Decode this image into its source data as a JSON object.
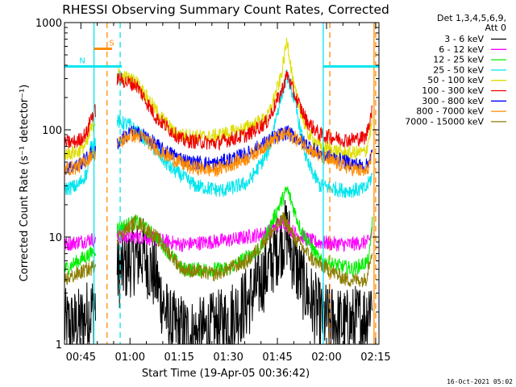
{
  "chart_data": {
    "type": "line",
    "title": "RHESSI Observing Summary Count Rates, Corrected",
    "ylabel": "Corrected Count Rate (s⁻¹ detector⁻¹)",
    "xlabel": "Start Time (19-Apr-05 00:36:42)",
    "footer": "16-Oct-2021 05:02",
    "legend_header": [
      "Det 1,3,4,5,6,9,",
      "Att 0"
    ],
    "legend_position": "right",
    "y_scale": "log",
    "ylim": [
      1,
      1000
    ],
    "y_ticks": [
      {
        "value": 1,
        "label": "1"
      },
      {
        "value": 10,
        "label": "10"
      },
      {
        "value": 100,
        "label": "100"
      },
      {
        "value": 1000,
        "label": "1000"
      }
    ],
    "x_start_minutes": 40,
    "xlim": [
      40,
      136
    ],
    "x_ticks": [
      {
        "value": 45,
        "label": "00:45"
      },
      {
        "value": 60,
        "label": "01:00"
      },
      {
        "value": 75,
        "label": "01:15"
      },
      {
        "value": 90,
        "label": "01:30"
      },
      {
        "value": 105,
        "label": "01:45"
      },
      {
        "value": 120,
        "label": "02:00"
      },
      {
        "value": 135,
        "label": "02:15"
      }
    ],
    "flags": [
      {
        "label": "S",
        "color": "#ff8c00",
        "start": 49,
        "end": 54.5,
        "level": 570
      },
      {
        "label": "N",
        "color": "#00e5ee",
        "start": 40,
        "end": 57.5,
        "level": 390
      },
      {
        "label": "",
        "color": "#00e5ee",
        "start": 119,
        "end": 136,
        "level": 390
      }
    ],
    "markers": [
      {
        "x": 49,
        "color": "#00e5ee",
        "style": "solid"
      },
      {
        "x": 53,
        "color": "#ff8c00",
        "style": "dash"
      },
      {
        "x": 57,
        "color": "#00e5ee",
        "style": "dash"
      },
      {
        "x": 119,
        "color": "#00e5ee",
        "style": "solid"
      },
      {
        "x": 121,
        "color": "#ff8c00",
        "style": "dash"
      },
      {
        "x": 134.5,
        "color": "#ff8c00",
        "style": "solid"
      },
      {
        "x": 135,
        "color": "#ff8c00",
        "style": "dash"
      }
    ],
    "gaps": [
      [
        49.5,
        56
      ]
    ],
    "noise": 0.07,
    "series": [
      {
        "name": "3 - 6 keV",
        "color": "#000000",
        "points": [
          [
            40,
            1.5
          ],
          [
            44,
            1.5
          ],
          [
            48,
            2.0
          ],
          [
            56,
            4.5
          ],
          [
            60,
            6
          ],
          [
            64,
            7
          ],
          [
            68,
            4
          ],
          [
            72,
            1.5
          ],
          [
            80,
            1.2
          ],
          [
            88,
            1.5
          ],
          [
            96,
            2.5
          ],
          [
            102,
            5
          ],
          [
            106,
            9
          ],
          [
            108,
            11
          ],
          [
            110,
            6
          ],
          [
            114,
            3
          ],
          [
            118,
            1.8
          ],
          [
            126,
            1.5
          ],
          [
            132,
            1.8
          ],
          [
            134,
            3
          ]
        ]
      },
      {
        "name": "6 - 12 keV",
        "color": "#ff00ff",
        "points": [
          [
            40,
            8.5
          ],
          [
            48,
            9.5
          ],
          [
            56,
            10
          ],
          [
            64,
            10
          ],
          [
            76,
            8.5
          ],
          [
            92,
            9.5
          ],
          [
            102,
            11
          ],
          [
            107,
            14
          ],
          [
            110,
            11
          ],
          [
            116,
            9
          ],
          [
            126,
            8.5
          ],
          [
            133,
            9
          ],
          [
            134,
            12
          ]
        ]
      },
      {
        "name": "12 - 25 keV",
        "color": "#00ee00",
        "points": [
          [
            40,
            5
          ],
          [
            48,
            7
          ],
          [
            56,
            12
          ],
          [
            62,
            14
          ],
          [
            68,
            10
          ],
          [
            76,
            5
          ],
          [
            90,
            5
          ],
          [
            100,
            8
          ],
          [
            105,
            18
          ],
          [
            108,
            28
          ],
          [
            112,
            12
          ],
          [
            118,
            6
          ],
          [
            128,
            5
          ],
          [
            133,
            6
          ],
          [
            134,
            15
          ]
        ]
      },
      {
        "name": "25 - 50 keV",
        "color": "#00e5ee",
        "points": [
          [
            40,
            28
          ],
          [
            44,
            30
          ],
          [
            47,
            40
          ],
          [
            48,
            70
          ],
          [
            56,
            120
          ],
          [
            60,
            110
          ],
          [
            66,
            75
          ],
          [
            72,
            45
          ],
          [
            80,
            30
          ],
          [
            88,
            27
          ],
          [
            96,
            32
          ],
          [
            102,
            60
          ],
          [
            106,
            200
          ],
          [
            108,
            320
          ],
          [
            110,
            200
          ],
          [
            114,
            50
          ],
          [
            118,
            30
          ],
          [
            126,
            27
          ],
          [
            132,
            28
          ],
          [
            134,
            38
          ]
        ]
      },
      {
        "name": "50 - 100 keV",
        "color": "#dede00",
        "points": [
          [
            40,
            60
          ],
          [
            44,
            62
          ],
          [
            47,
            75
          ],
          [
            48,
            100
          ],
          [
            56,
            330
          ],
          [
            62,
            280
          ],
          [
            68,
            150
          ],
          [
            74,
            90
          ],
          [
            84,
            85
          ],
          [
            94,
            100
          ],
          [
            102,
            130
          ],
          [
            106,
            300
          ],
          [
            108,
            700
          ],
          [
            110,
            250
          ],
          [
            114,
            95
          ],
          [
            118,
            70
          ],
          [
            126,
            60
          ],
          [
            132,
            62
          ],
          [
            134,
            120
          ]
        ]
      },
      {
        "name": "100 - 300 keV",
        "color": "#ee0000",
        "points": [
          [
            40,
            75
          ],
          [
            44,
            78
          ],
          [
            47,
            95
          ],
          [
            48,
            130
          ],
          [
            56,
            300
          ],
          [
            62,
            260
          ],
          [
            68,
            130
          ],
          [
            76,
            80
          ],
          [
            86,
            75
          ],
          [
            96,
            90
          ],
          [
            102,
            120
          ],
          [
            106,
            220
          ],
          [
            108,
            330
          ],
          [
            110,
            220
          ],
          [
            114,
            120
          ],
          [
            118,
            90
          ],
          [
            126,
            80
          ],
          [
            132,
            85
          ],
          [
            134,
            160
          ]
        ]
      },
      {
        "name": "300 - 800 keV",
        "color": "#0000ff",
        "points": [
          [
            40,
            44
          ],
          [
            44,
            46
          ],
          [
            47,
            55
          ],
          [
            48,
            60
          ],
          [
            56,
            75
          ],
          [
            60,
            95
          ],
          [
            64,
            90
          ],
          [
            70,
            65
          ],
          [
            78,
            50
          ],
          [
            86,
            48
          ],
          [
            96,
            60
          ],
          [
            104,
            85
          ],
          [
            108,
            95
          ],
          [
            112,
            80
          ],
          [
            118,
            60
          ],
          [
            126,
            50
          ],
          [
            132,
            45
          ],
          [
            134,
            60
          ]
        ]
      },
      {
        "name": "800 - 7000 keV",
        "color": "#ff8c00",
        "points": [
          [
            40,
            43
          ],
          [
            44,
            45
          ],
          [
            47,
            52
          ],
          [
            48,
            58
          ],
          [
            56,
            72
          ],
          [
            60,
            90
          ],
          [
            64,
            85
          ],
          [
            70,
            60
          ],
          [
            78,
            45
          ],
          [
            86,
            42
          ],
          [
            96,
            55
          ],
          [
            104,
            82
          ],
          [
            108,
            92
          ],
          [
            112,
            78
          ],
          [
            118,
            56
          ],
          [
            126,
            45
          ],
          [
            132,
            40
          ],
          [
            134,
            55
          ]
        ]
      },
      {
        "name": "7000 - 15000 keV",
        "color": "#8b7d00",
        "points": [
          [
            40,
            4
          ],
          [
            44,
            4.5
          ],
          [
            47,
            5
          ],
          [
            48,
            5
          ],
          [
            56,
            10
          ],
          [
            62,
            14
          ],
          [
            68,
            10
          ],
          [
            76,
            5
          ],
          [
            86,
            4.5
          ],
          [
            96,
            6
          ],
          [
            102,
            10
          ],
          [
            107,
            15
          ],
          [
            110,
            10
          ],
          [
            116,
            6
          ],
          [
            126,
            4
          ],
          [
            132,
            4
          ],
          [
            134,
            8
          ]
        ]
      }
    ]
  }
}
